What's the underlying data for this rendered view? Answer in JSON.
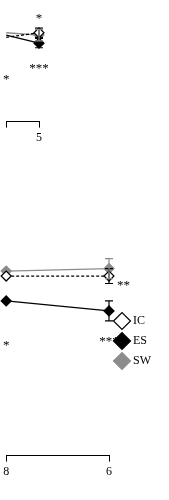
{
  "chart_data": [
    {
      "type": "line",
      "categories": [
        null,
        "5"
      ],
      "ylim": [
        0,
        10
      ],
      "tick_labels": "x",
      "grid": false,
      "series": [
        {
          "name": "IC",
          "color": "#000000",
          "marker": "open_diamond",
          "line_style": "dashed",
          "values": [
            7.3,
            7.7
          ],
          "errors": [
            null,
            0.4
          ],
          "significance": [
            null,
            null
          ]
        },
        {
          "name": "ES",
          "color": "#000000",
          "marker": "diamond",
          "line_style": "solid",
          "values": [
            7.5,
            6.8
          ],
          "errors": [
            null,
            0.4
          ],
          "significance": [
            "*",
            "***"
          ]
        },
        {
          "name": "SW",
          "color": "#8c8c8c",
          "marker": "diamond",
          "line_style": "solid",
          "values": [
            7.7,
            7.5
          ],
          "errors": [
            null,
            0.5
          ],
          "significance": [
            null,
            "*"
          ]
        }
      ]
    },
    {
      "type": "line",
      "categories": [
        "8",
        "6"
      ],
      "ylim": [
        0,
        10
      ],
      "tick_labels": "x",
      "grid": false,
      "legend": "right",
      "series": [
        {
          "name": "IC",
          "color": "#000000",
          "marker": "open_diamond",
          "line_style": "dashed",
          "values": [
            7.2,
            7.2
          ],
          "errors": [
            null,
            0.3
          ],
          "significance": [
            null,
            "**"
          ]
        },
        {
          "name": "ES",
          "color": "#000000",
          "marker": "diamond",
          "line_style": "solid",
          "values": [
            6.2,
            5.8
          ],
          "errors": [
            null,
            0.4
          ],
          "significance": [
            "*",
            "***"
          ]
        },
        {
          "name": "SW",
          "color": "#8c8c8c",
          "marker": "diamond",
          "line_style": "solid",
          "values": [
            7.4,
            7.5
          ],
          "errors": [
            null,
            0.4
          ],
          "significance": [
            null,
            null
          ]
        }
      ]
    }
  ]
}
